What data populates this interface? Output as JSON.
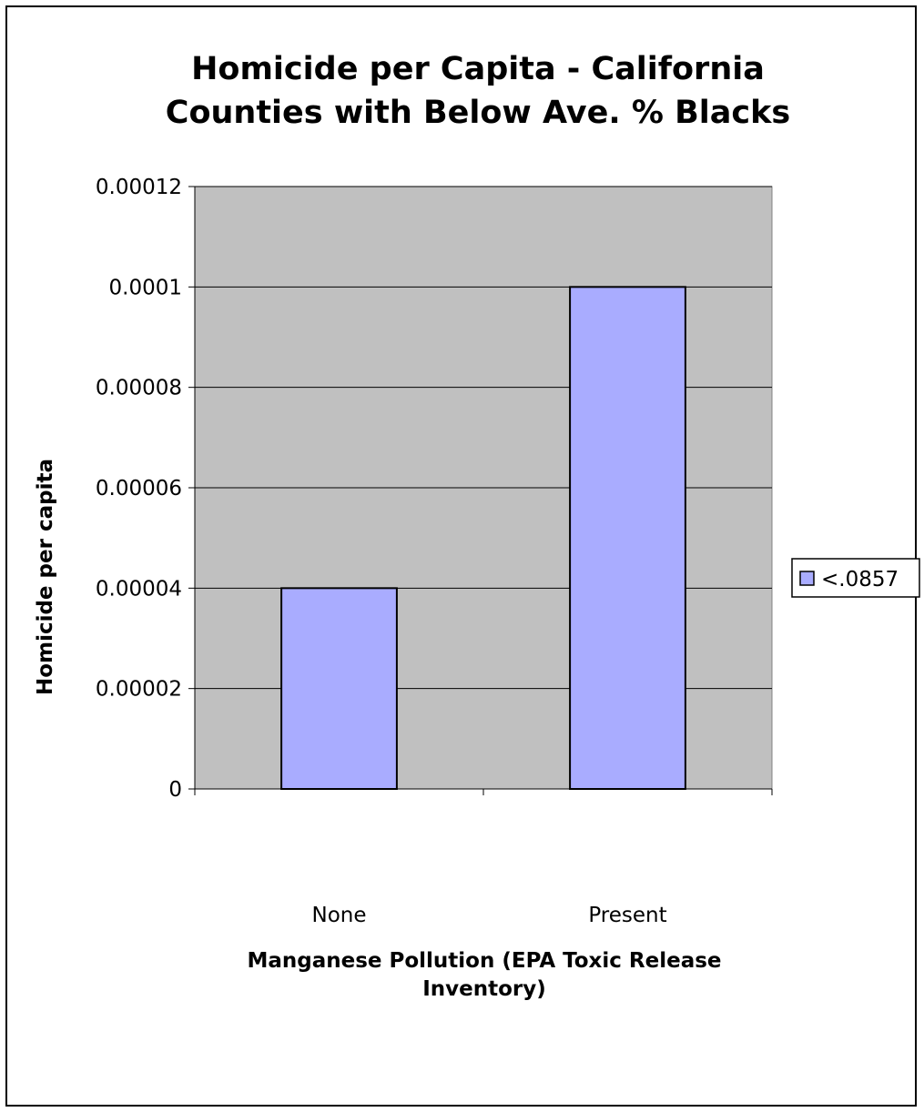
{
  "chart_data": {
    "type": "bar",
    "title": [
      "Homicide per Capita - California",
      "Counties with Below Ave. % Blacks"
    ],
    "xlabel": [
      "Manganese Pollution (EPA Toxic Release",
      "Inventory)"
    ],
    "ylabel": "Homicide per capita",
    "categories": [
      "None",
      "Present"
    ],
    "series": [
      {
        "name": "<.0857",
        "values": [
          4e-05,
          0.0001
        ],
        "color": "#a9acff"
      }
    ],
    "ylim": [
      0,
      0.00012
    ],
    "yticks": [
      0,
      2e-05,
      4e-05,
      6e-05,
      8e-05,
      0.0001,
      0.00012
    ],
    "ytick_labels": [
      "0",
      "0.00002",
      "0.00004",
      "0.00006",
      "0.00008",
      "0.0001",
      "0.00012"
    ],
    "grid": true,
    "legend_position": "right",
    "plot_background": "#c0c0c0",
    "gridline_color": "#000000"
  }
}
